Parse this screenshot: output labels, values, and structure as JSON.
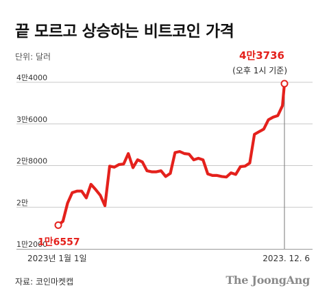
{
  "title": "끝 모르고 상승하는 비트코인 가격",
  "unit_label": "단위: 달러",
  "source": "자료: 코인마켓캡",
  "publisher": "The JoongAng",
  "colors": {
    "line": "#e4211c",
    "grid": "#c8c8c8",
    "axis": "#999999",
    "text": "#333333"
  },
  "chart_data": {
    "type": "line",
    "title": "끝 모르고 상승하는 비트코인 가격",
    "ylabel": "단위: 달러",
    "ylim": [
      12000,
      44000
    ],
    "yticks": [
      {
        "value": 12000,
        "label": "1만2000"
      },
      {
        "value": 20000,
        "label": "2만"
      },
      {
        "value": 28000,
        "label": "2만8000"
      },
      {
        "value": 36000,
        "label": "3만6000"
      },
      {
        "value": 44000,
        "label": "4만4000"
      }
    ],
    "x_tick_labels": [
      "2023년 1월 1일",
      "2023. 12. 6"
    ],
    "grid": true,
    "series": [
      {
        "x": [
          "2023-01-01",
          "2023-01-08",
          "2023-01-15",
          "2023-01-22",
          "2023-01-29",
          "2023-02-05",
          "2023-02-12",
          "2023-02-19",
          "2023-02-26",
          "2023-03-05",
          "2023-03-12",
          "2023-03-19",
          "2023-03-26",
          "2023-04-02",
          "2023-04-09",
          "2023-04-16",
          "2023-04-23",
          "2023-04-30",
          "2023-05-07",
          "2023-05-14",
          "2023-05-21",
          "2023-05-28",
          "2023-06-04",
          "2023-06-11",
          "2023-06-18",
          "2023-06-25",
          "2023-07-02",
          "2023-07-09",
          "2023-07-16",
          "2023-07-23",
          "2023-07-30",
          "2023-08-06",
          "2023-08-13",
          "2023-08-20",
          "2023-08-27",
          "2023-09-03",
          "2023-09-10",
          "2023-09-17",
          "2023-09-24",
          "2023-10-01",
          "2023-10-08",
          "2023-10-15",
          "2023-10-22",
          "2023-10-29",
          "2023-11-05",
          "2023-11-12",
          "2023-11-19",
          "2023-11-26",
          "2023-12-03",
          "2023-12-06"
        ],
        "values": [
          16557,
          17300,
          20800,
          22800,
          23100,
          23100,
          21800,
          24400,
          23400,
          22300,
          20300,
          27900,
          27700,
          28200,
          28300,
          30300,
          27600,
          29100,
          28700,
          27000,
          26800,
          26800,
          27000,
          25900,
          26500,
          30500,
          30700,
          30300,
          30200,
          29100,
          29400,
          29100,
          26400,
          26100,
          26100,
          25900,
          25800,
          26600,
          26300,
          27800,
          27900,
          28500,
          34000,
          34500,
          35000,
          36800,
          37300,
          37600,
          39500,
          43736
        ]
      }
    ],
    "annotations": [
      {
        "x": "2023-01-01",
        "y": 16557,
        "label": "1만6557"
      },
      {
        "x": "2023-12-06",
        "y": 43736,
        "label": "4만3736",
        "sublabel": "(오후 1시 기준)"
      }
    ]
  }
}
